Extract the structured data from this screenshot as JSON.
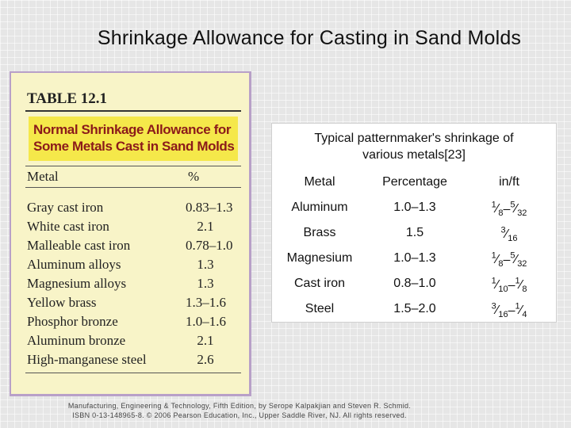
{
  "slide": {
    "title": "Shrinkage Allowance for Casting in Sand Molds"
  },
  "table_12_1": {
    "label": "TABLE 12.1",
    "heading_line1": "Normal Shrinkage Allowance for",
    "heading_line2": "Some Metals Cast in Sand Molds",
    "col_metal": "Metal",
    "col_percent": "%",
    "rows": [
      {
        "metal": "Gray cast iron",
        "value": "0.83–1.3"
      },
      {
        "metal": "White cast iron",
        "value": "2.1"
      },
      {
        "metal": "Malleable cast iron",
        "value": "0.78–1.0"
      },
      {
        "metal": "Aluminum alloys",
        "value": "1.3"
      },
      {
        "metal": "Magnesium alloys",
        "value": "1.3"
      },
      {
        "metal": "Yellow brass",
        "value": "1.3–1.6"
      },
      {
        "metal": "Phosphor bronze",
        "value": "1.0–1.6"
      },
      {
        "metal": "Aluminum bronze",
        "value": "2.1"
      },
      {
        "metal": "High-manganese steel",
        "value": "2.6"
      }
    ]
  },
  "patternmaker_table": {
    "caption_line1": "Typical patternmaker's shrinkage of",
    "caption_line2": "various metals[23]",
    "headers": {
      "metal": "Metal",
      "percentage": "Percentage",
      "in_ft": "in/ft"
    },
    "rows": [
      {
        "metal": "Aluminum",
        "percentage": "1.0–1.3",
        "in_ft": [
          {
            "n": "1",
            "d": "8"
          },
          {
            "sep": "–"
          },
          {
            "n": "5",
            "d": "32"
          }
        ]
      },
      {
        "metal": "Brass",
        "percentage": "1.5",
        "in_ft": [
          {
            "n": "3",
            "d": "16"
          }
        ]
      },
      {
        "metal": "Magnesium",
        "percentage": "1.0–1.3",
        "in_ft": [
          {
            "n": "1",
            "d": "8"
          },
          {
            "sep": "–"
          },
          {
            "n": "5",
            "d": "32"
          }
        ]
      },
      {
        "metal": "Cast iron",
        "percentage": "0.8–1.0",
        "in_ft": [
          {
            "n": "1",
            "d": "10"
          },
          {
            "sep": "–"
          },
          {
            "n": "1",
            "d": "8"
          }
        ]
      },
      {
        "metal": "Steel",
        "percentage": "1.5–2.0",
        "in_ft": [
          {
            "n": "3",
            "d": "16"
          },
          {
            "sep": "–"
          },
          {
            "n": "1",
            "d": "4"
          }
        ]
      }
    ]
  },
  "footer": {
    "line1": "Manufacturing, Engineering & Technology, Fifth Edition, by Serope Kalpakjian and Steven R. Schmid.",
    "line2": "ISBN 0-13-148965-8. © 2006 Pearson Education, Inc., Upper Saddle River, NJ. All rights reserved."
  }
}
